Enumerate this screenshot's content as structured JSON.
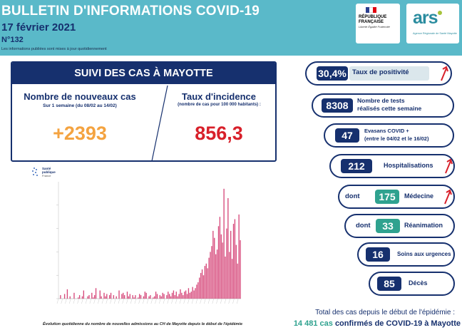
{
  "header": {
    "title": "BULLETIN D'INFORMATIONS COVID-19",
    "date": "17 février 2021",
    "number": "N°132",
    "note": "Les informations publiées sont mises à jour quotidiennement",
    "logo_rf_line1": "RÉPUBLIQUE",
    "logo_rf_line2": "FRANÇAISE",
    "logo_rf_motto": "Liberté Égalité Fraternité",
    "logo_ars": "ars",
    "logo_ars_sub": "Agence Régionale de Santé Mayotte",
    "colors": {
      "band": "#5ab9c9",
      "navy": "#16306e",
      "flag_blue": "#2b3f8f",
      "flag_red": "#e1000f"
    }
  },
  "mayotte": {
    "title": "SUIVI DES CAS À MAYOTTE",
    "new_cases_title": "Nombre de nouveaux cas",
    "new_cases_sub": "Sur 1 semaine (du 08/02 au 14/02)",
    "new_cases_value": "+2393",
    "incidence_title": "Taux d'incidence",
    "incidence_sub": "(nombre de cas pour 100 000 habitants) :",
    "incidence_value": "856,3",
    "colors": {
      "new_cases": "#f4a340",
      "incidence": "#d8202a"
    }
  },
  "chart_logo": {
    "line1": "Santé",
    "line2": "publique",
    "line3": "France"
  },
  "chart_data": {
    "type": "bar",
    "title": "",
    "xlabel": "",
    "ylabel": "",
    "ylim": [
      0,
      100
    ],
    "bar_color": "#d6487a",
    "values": [
      0,
      3,
      0,
      0,
      4,
      0,
      8,
      0,
      2,
      0,
      0,
      5,
      0,
      0,
      1,
      3,
      0,
      2,
      7,
      0,
      0,
      2,
      3,
      0,
      5,
      1,
      3,
      9,
      0,
      0,
      7,
      2,
      0,
      5,
      2,
      4,
      0,
      3,
      5,
      0,
      3,
      0,
      2,
      0,
      7,
      0,
      4,
      5,
      3,
      0,
      6,
      2,
      4,
      0,
      3,
      1,
      3,
      0,
      1,
      4,
      3,
      0,
      2,
      6,
      5,
      0,
      2,
      3,
      0,
      1,
      2,
      6,
      4,
      0,
      3,
      2,
      5,
      4,
      0,
      3,
      6,
      4,
      2,
      5,
      7,
      3,
      6,
      2,
      4,
      8,
      5,
      3,
      6,
      7,
      4,
      9,
      5,
      6,
      10,
      7,
      9,
      12,
      14,
      18,
      22,
      25,
      20,
      28,
      30,
      26,
      35,
      40,
      45,
      58,
      52,
      38,
      42,
      62,
      70,
      55,
      48,
      94,
      36,
      60,
      86,
      40,
      58,
      34,
      64,
      68,
      46,
      30,
      72,
      50
    ],
    "caption": "Évolution quotidienne du nombre de nouvelles admissions au CH de Mayotte depuis le début de l'épidémie"
  },
  "indicators": {
    "positivity": {
      "value": "30,4%",
      "label": "Taux de positivité",
      "trend": "up"
    },
    "tests": {
      "value": "8308",
      "label_line1": "Nombre de tests",
      "label_line2": "réalisés cette semaine"
    },
    "evasans": {
      "value": "47",
      "label_line1": "Evasans COVID +",
      "label_line2": "(entre le 04/02 et le 16/02)"
    },
    "hospital": {
      "value": "212",
      "label": "Hospitalisations",
      "trend": "up"
    },
    "medecine": {
      "prefix": "dont",
      "value": "175",
      "label": "Médecine",
      "trend": "up"
    },
    "reanimation": {
      "prefix": "dont",
      "value": "33",
      "label": "Réanimation"
    },
    "urgences": {
      "value": "16",
      "label": "Soins aux urgences"
    },
    "deces": {
      "value": "85",
      "label": "Décès"
    },
    "colors": {
      "navy": "#16306e",
      "teal": "#2fa28f",
      "arrow": "#d8202a"
    }
  },
  "totals": {
    "line1": "Total des cas depuis le début de l'épidémie :",
    "cases": "14 481 cas",
    "middle": "confirmés de COVID-19 à Mayotte"
  }
}
